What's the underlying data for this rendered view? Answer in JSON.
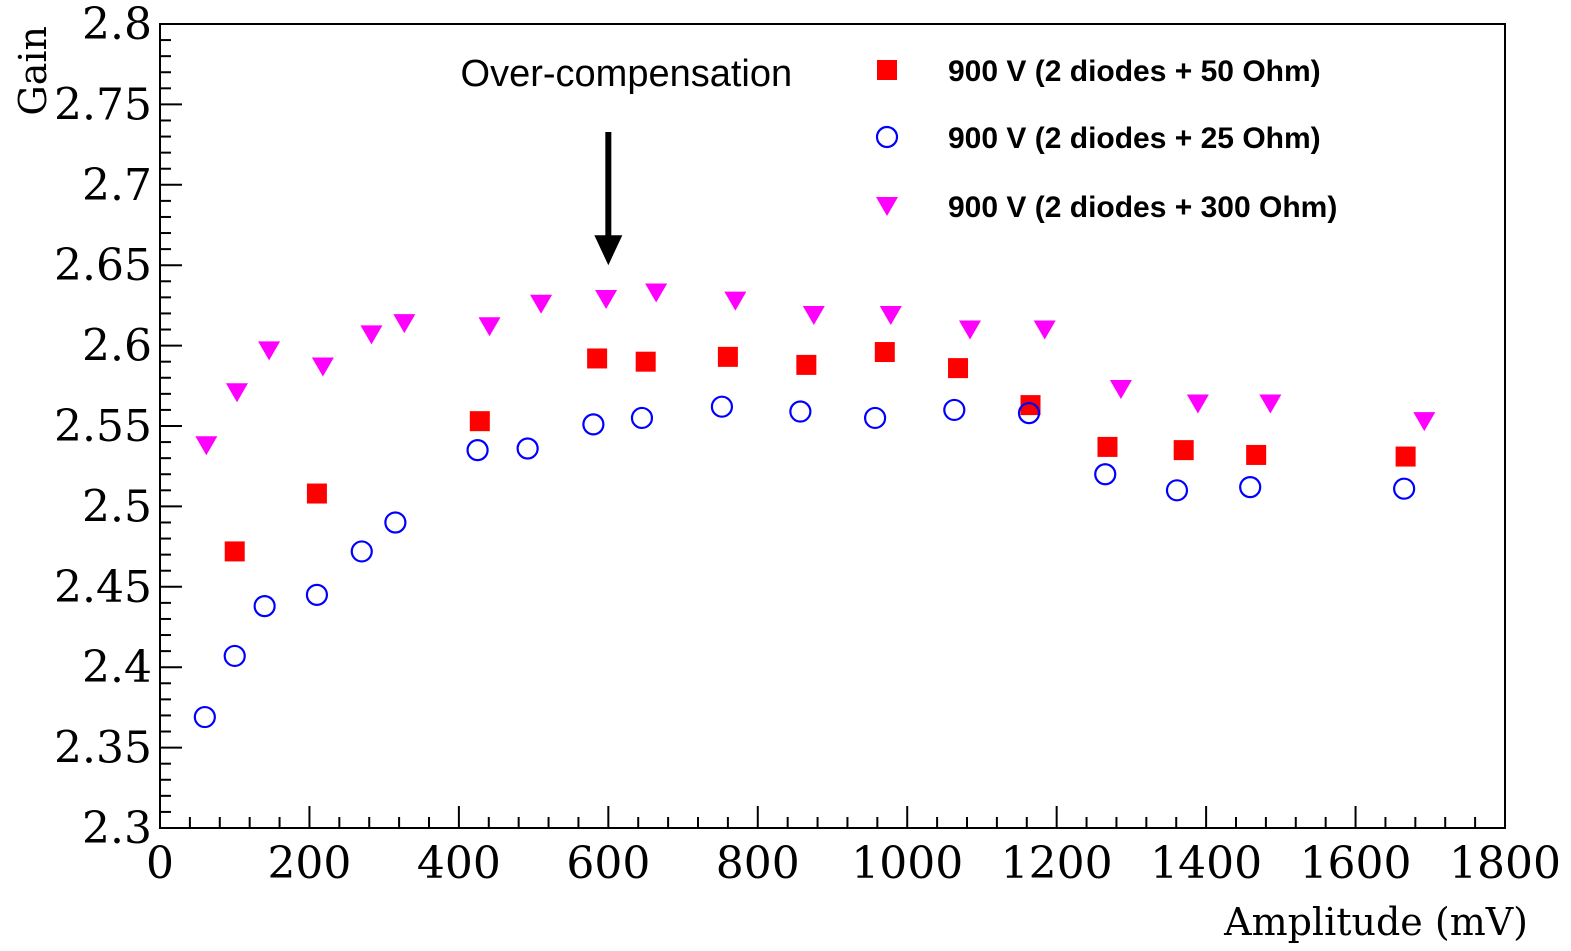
{
  "chart_data": {
    "type": "scatter",
    "title": "",
    "xlabel": "Amplitude (mV)",
    "ylabel": "Gain",
    "xlim": [
      0,
      1800
    ],
    "ylim": [
      2.3,
      2.8
    ],
    "grid": false,
    "legend_position": "top-right",
    "x_ticks": [
      {
        "value": 0,
        "label": "0"
      },
      {
        "value": 200,
        "label": "200"
      },
      {
        "value": 400,
        "label": "400"
      },
      {
        "value": 600,
        "label": "600"
      },
      {
        "value": 800,
        "label": "800"
      },
      {
        "value": 1000,
        "label": "1000"
      },
      {
        "value": 1200,
        "label": "1200"
      },
      {
        "value": 1400,
        "label": "1400"
      },
      {
        "value": 1600,
        "label": "1600"
      },
      {
        "value": 1800,
        "label": "1800"
      }
    ],
    "y_ticks": [
      {
        "value": 2.3,
        "label": "2.3"
      },
      {
        "value": 2.35,
        "label": "2.35"
      },
      {
        "value": 2.4,
        "label": "2.4"
      },
      {
        "value": 2.45,
        "label": "2.45"
      },
      {
        "value": 2.5,
        "label": "2.5"
      },
      {
        "value": 2.55,
        "label": "2.55"
      },
      {
        "value": 2.6,
        "label": "2.6"
      },
      {
        "value": 2.65,
        "label": "2.65"
      },
      {
        "value": 2.7,
        "label": "2.7"
      },
      {
        "value": 2.75,
        "label": "2.75"
      },
      {
        "value": 2.8,
        "label": "2.8"
      }
    ],
    "series": [
      {
        "name": "900 V (2 diodes + 50 Ohm)",
        "marker": "square-filled",
        "color": "#ff0000",
        "points": [
          [
            100,
            2.472
          ],
          [
            210,
            2.508
          ],
          [
            428,
            2.553
          ],
          [
            585,
            2.592
          ],
          [
            650,
            2.59
          ],
          [
            760,
            2.593
          ],
          [
            865,
            2.588
          ],
          [
            970,
            2.596
          ],
          [
            1068,
            2.586
          ],
          [
            1165,
            2.563
          ],
          [
            1268,
            2.537
          ],
          [
            1370,
            2.535
          ],
          [
            1467,
            2.532
          ],
          [
            1667,
            2.531
          ]
        ]
      },
      {
        "name": "900 V (2 diodes + 25 Ohm)",
        "marker": "circle-open",
        "color": "#0000ff",
        "points": [
          [
            60,
            2.369
          ],
          [
            100,
            2.407
          ],
          [
            140,
            2.438
          ],
          [
            210,
            2.445
          ],
          [
            270,
            2.472
          ],
          [
            315,
            2.49
          ],
          [
            425,
            2.535
          ],
          [
            492,
            2.536
          ],
          [
            580,
            2.551
          ],
          [
            645,
            2.555
          ],
          [
            752,
            2.562
          ],
          [
            857,
            2.559
          ],
          [
            957,
            2.555
          ],
          [
            1063,
            2.56
          ],
          [
            1163,
            2.558
          ],
          [
            1265,
            2.52
          ],
          [
            1361,
            2.51
          ],
          [
            1459,
            2.512
          ],
          [
            1665,
            2.511
          ]
        ]
      },
      {
        "name": "900 V (2 diodes + 300 Ohm)",
        "marker": "triangle-down-filled",
        "color": "#ff00ff",
        "points": [
          [
            62,
            2.538
          ],
          [
            103,
            2.571
          ],
          [
            146,
            2.597
          ],
          [
            218,
            2.587
          ],
          [
            283,
            2.607
          ],
          [
            327,
            2.614
          ],
          [
            441,
            2.612
          ],
          [
            510,
            2.626
          ],
          [
            597,
            2.629
          ],
          [
            664,
            2.633
          ],
          [
            770,
            2.628
          ],
          [
            875,
            2.619
          ],
          [
            978,
            2.619
          ],
          [
            1084,
            2.61
          ],
          [
            1184,
            2.61
          ],
          [
            1286,
            2.573
          ],
          [
            1389,
            2.564
          ],
          [
            1486,
            2.564
          ],
          [
            1692,
            2.553
          ]
        ]
      }
    ],
    "annotation": {
      "text": "Over-compensation",
      "points_to_x": 600,
      "points_to_y": 2.65
    }
  }
}
